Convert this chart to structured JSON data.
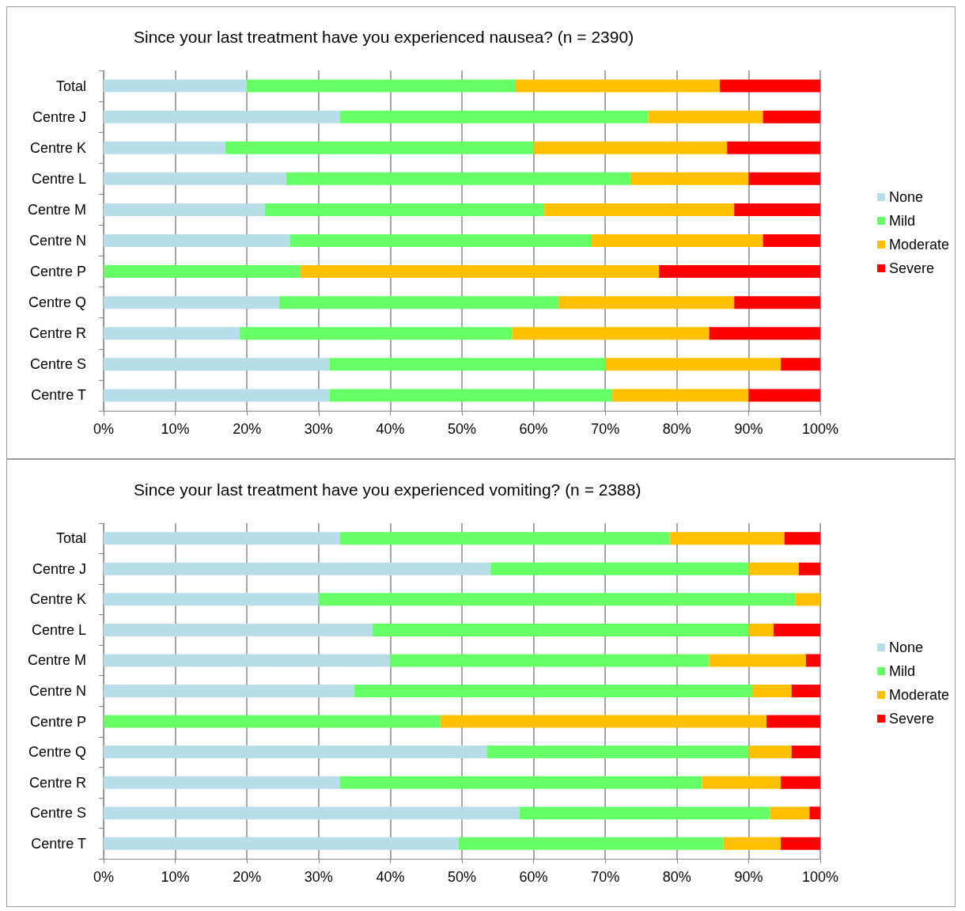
{
  "chart_data": [
    {
      "type": "bar",
      "orientation": "horizontal",
      "stacked": true,
      "title": "Since your last treatment have you experienced nausea? (n = 2390)",
      "categories": [
        "Total",
        "Centre J",
        "Centre K",
        "Centre L",
        "Centre M",
        "Centre N",
        "Centre P",
        "Centre Q",
        "Centre R",
        "Centre S",
        "Centre T"
      ],
      "series": [
        {
          "name": "None",
          "color": "#b7dde8",
          "values": [
            20,
            33,
            17,
            25.5,
            22.5,
            26,
            0,
            24.5,
            19,
            31.5,
            31.5
          ]
        },
        {
          "name": "Mild",
          "color": "#66ff66",
          "values": [
            37.5,
            43,
            43,
            48,
            39,
            42,
            27.5,
            39,
            38,
            38.5,
            39.5
          ]
        },
        {
          "name": "Moderate",
          "color": "#ffc000",
          "values": [
            28.5,
            16,
            27,
            16.5,
            26.5,
            24,
            50,
            24.5,
            27.5,
            24.5,
            19
          ]
        },
        {
          "name": "Severe",
          "color": "#ff0000",
          "values": [
            14,
            8,
            13,
            10,
            12,
            8,
            22.5,
            12,
            15.5,
            5.5,
            10
          ]
        }
      ],
      "xlim": [
        0,
        100
      ],
      "xticks": [
        {
          "value": 0,
          "label": "0%"
        },
        {
          "value": 10,
          "label": "10%"
        },
        {
          "value": 20,
          "label": "20%"
        },
        {
          "value": 30,
          "label": "30%"
        },
        {
          "value": 40,
          "label": "40%"
        },
        {
          "value": 50,
          "label": "50%"
        },
        {
          "value": 60,
          "label": "60%"
        },
        {
          "value": 70,
          "label": "70%"
        },
        {
          "value": 80,
          "label": "80%"
        },
        {
          "value": 90,
          "label": "90%"
        },
        {
          "value": 100,
          "label": "100%"
        }
      ],
      "grid": "x",
      "legend": "right"
    },
    {
      "type": "bar",
      "orientation": "horizontal",
      "stacked": true,
      "title": "Since your last treatment have you experienced vomiting? (n = 2388)",
      "categories": [
        "Total",
        "Centre J",
        "Centre K",
        "Centre L",
        "Centre M",
        "Centre N",
        "Centre P",
        "Centre Q",
        "Centre R",
        "Centre S",
        "Centre T"
      ],
      "series": [
        {
          "name": "None",
          "color": "#b7dde8",
          "values": [
            33,
            54,
            30,
            37.5,
            40,
            35,
            0,
            53.5,
            33,
            58,
            49.5
          ]
        },
        {
          "name": "Mild",
          "color": "#66ff66",
          "values": [
            46,
            36,
            66.5,
            52.5,
            44.5,
            55.5,
            47,
            36.5,
            50.5,
            35,
            37
          ]
        },
        {
          "name": "Moderate",
          "color": "#ffc000",
          "values": [
            16,
            7,
            3.5,
            3.5,
            13.5,
            5.5,
            45.5,
            6,
            11,
            5.5,
            8
          ]
        },
        {
          "name": "Severe",
          "color": "#ff0000",
          "values": [
            5,
            3,
            0,
            6.5,
            2,
            4,
            7.5,
            4,
            5.5,
            1.5,
            5.5
          ]
        }
      ],
      "xlim": [
        0,
        100
      ],
      "xticks": [
        {
          "value": 0,
          "label": "0%"
        },
        {
          "value": 10,
          "label": "10%"
        },
        {
          "value": 20,
          "label": "20%"
        },
        {
          "value": 30,
          "label": "30%"
        },
        {
          "value": 40,
          "label": "40%"
        },
        {
          "value": 50,
          "label": "50%"
        },
        {
          "value": 60,
          "label": "60%"
        },
        {
          "value": 70,
          "label": "70%"
        },
        {
          "value": 80,
          "label": "80%"
        },
        {
          "value": 90,
          "label": "90%"
        },
        {
          "value": 100,
          "label": "100%"
        }
      ],
      "grid": "x",
      "legend": "right"
    }
  ]
}
